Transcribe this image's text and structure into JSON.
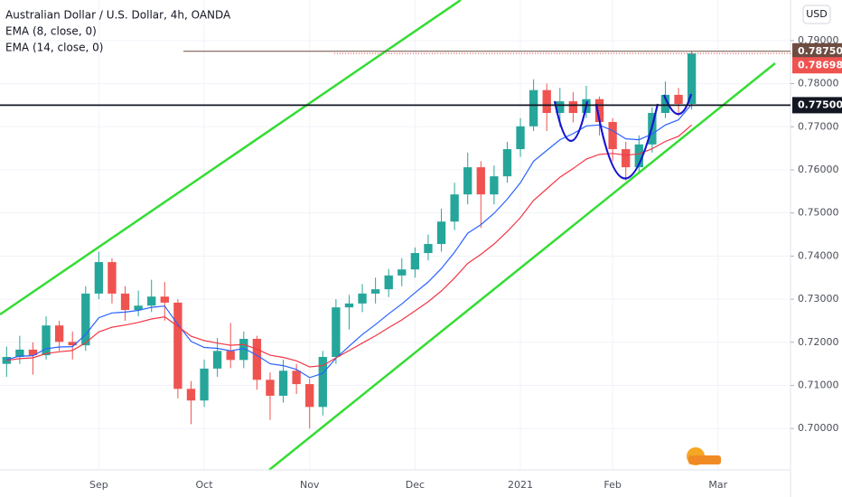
{
  "chart_data": {
    "type": "candlestick",
    "title": "Australian Dollar / U.S. Dollar, 4h, OANDA",
    "currency": "USD",
    "categories": [
      null,
      null,
      null,
      null,
      null,
      null,
      null,
      "Sep",
      null,
      null,
      null,
      null,
      null,
      null,
      null,
      "Oct",
      null,
      null,
      null,
      null,
      null,
      null,
      null,
      "Nov",
      null,
      null,
      null,
      null,
      null,
      null,
      null,
      "Dec",
      null,
      null,
      null,
      null,
      null,
      null,
      null,
      "2021",
      null,
      null,
      null,
      null,
      null,
      null,
      "Feb",
      null,
      null,
      null,
      null,
      null,
      null,
      null,
      "Mar",
      null,
      null,
      null,
      null,
      null
    ],
    "open": [
      0.715,
      0.7166,
      0.7183,
      0.717,
      0.7239,
      0.7201,
      0.7193,
      0.7313,
      0.7386,
      0.7313,
      0.7275,
      0.7285,
      0.7306,
      0.7292,
      0.7092,
      0.7065,
      0.7139,
      0.718,
      0.7159,
      0.7208,
      0.7113,
      0.7076,
      0.7134,
      0.7103,
      0.705,
      0.7166,
      0.7281,
      0.729,
      0.7313,
      0.7323,
      0.7355,
      0.7369,
      0.7407,
      0.7428,
      0.748,
      0.7543,
      0.7606,
      0.7543,
      0.7585,
      0.7648,
      0.7701,
      0.7785,
      0.7732,
      0.7759,
      0.7732,
      0.7764,
      0.7711,
      0.7648,
      0.7606,
      0.7659,
      0.7732,
      0.7774,
      0.7753,
      null,
      null,
      null,
      null,
      null,
      null,
      null
    ],
    "high": [
      0.719,
      0.7215,
      0.72,
      0.726,
      0.725,
      0.7225,
      0.733,
      0.741,
      0.7395,
      0.733,
      0.732,
      0.7345,
      0.734,
      0.73,
      0.711,
      0.716,
      0.721,
      0.7245,
      0.7225,
      0.7215,
      0.713,
      0.716,
      0.715,
      0.7115,
      0.718,
      0.73,
      0.731,
      0.7335,
      0.735,
      0.737,
      0.7395,
      0.742,
      0.745,
      0.751,
      0.757,
      0.764,
      0.762,
      0.761,
      0.7665,
      0.772,
      0.781,
      0.78,
      0.779,
      0.778,
      0.7795,
      0.777,
      0.772,
      0.7665,
      0.768,
      0.7745,
      0.7805,
      0.779,
      0.7875,
      null,
      null,
      null,
      null,
      null,
      null,
      null
    ],
    "low": [
      0.712,
      0.715,
      0.7125,
      0.716,
      0.718,
      0.716,
      0.718,
      0.73,
      0.729,
      0.725,
      0.726,
      0.727,
      0.725,
      0.707,
      0.701,
      0.705,
      0.712,
      0.714,
      0.714,
      0.709,
      0.702,
      0.706,
      0.708,
      0.7,
      0.703,
      0.715,
      0.723,
      0.727,
      0.729,
      0.7305,
      0.733,
      0.735,
      0.739,
      0.741,
      0.746,
      0.752,
      0.7465,
      0.752,
      0.757,
      0.763,
      0.769,
      0.769,
      0.77,
      0.771,
      0.772,
      0.768,
      0.762,
      0.7575,
      0.759,
      0.764,
      0.772,
      0.7725,
      0.774,
      null,
      null,
      null,
      null,
      null,
      null,
      null
    ],
    "close": [
      0.7166,
      0.7183,
      0.717,
      0.7239,
      0.7201,
      0.7193,
      0.7313,
      0.7386,
      0.7313,
      0.7275,
      0.7285,
      0.7306,
      0.7292,
      0.7092,
      0.7065,
      0.7139,
      0.718,
      0.7159,
      0.7208,
      0.7113,
      0.7076,
      0.7134,
      0.7103,
      0.705,
      0.7166,
      0.7281,
      0.729,
      0.7313,
      0.7323,
      0.7355,
      0.7369,
      0.7407,
      0.7428,
      0.748,
      0.7543,
      0.7606,
      0.7543,
      0.7585,
      0.7648,
      0.7701,
      0.7785,
      0.7732,
      0.7759,
      0.7732,
      0.7764,
      0.7711,
      0.7648,
      0.7606,
      0.7659,
      0.7732,
      0.7774,
      0.7753,
      0.787,
      null,
      null,
      null,
      null,
      null,
      null,
      null
    ],
    "up_color": "#26a69a",
    "down_color": "#ef5350",
    "series": [
      {
        "name": "EMA (8, close, 0)",
        "color": "#2962ff",
        "values": [
          0.716,
          0.7168,
          0.7169,
          0.7185,
          0.7189,
          0.719,
          0.7218,
          0.7257,
          0.7268,
          0.727,
          0.7274,
          0.7281,
          0.7284,
          0.7241,
          0.7202,
          0.7188,
          0.7186,
          0.718,
          0.7186,
          0.717,
          0.715,
          0.7146,
          0.7137,
          0.7118,
          0.7128,
          0.7163,
          0.7191,
          0.7218,
          0.7241,
          0.7266,
          0.7289,
          0.7315,
          0.734,
          0.7371,
          0.7409,
          0.7453,
          0.7473,
          0.7499,
          0.7532,
          0.757,
          0.762,
          0.7645,
          0.767,
          0.7684,
          0.7702,
          0.7704,
          0.7691,
          0.7672,
          0.767,
          0.7683,
          0.7704,
          0.7716,
          0.7752,
          null,
          null,
          null,
          null,
          null,
          null,
          null
        ]
      },
      {
        "name": "EMA (14, close, 0)",
        "color": "#f23645",
        "values": [
          0.7158,
          0.7162,
          0.7164,
          0.7174,
          0.7178,
          0.7181,
          0.7199,
          0.7224,
          0.7235,
          0.724,
          0.7246,
          0.7254,
          0.7259,
          0.7237,
          0.7214,
          0.7204,
          0.7198,
          0.7193,
          0.7195,
          0.7184,
          0.717,
          0.7165,
          0.7157,
          0.7143,
          0.7146,
          0.7164,
          0.7181,
          0.7198,
          0.7215,
          0.7234,
          0.7252,
          0.7273,
          0.7294,
          0.7319,
          0.7349,
          0.7383,
          0.7404,
          0.7428,
          0.7457,
          0.7489,
          0.7529,
          0.7556,
          0.7583,
          0.7603,
          0.7625,
          0.7636,
          0.7638,
          0.7634,
          0.7637,
          0.7649,
          0.7666,
          0.7678,
          0.7704,
          null,
          null,
          null,
          null,
          null,
          null,
          null
        ]
      }
    ],
    "ylim": [
      0.6904,
      0.7994
    ],
    "yticks": [
      {
        "value": 0.7,
        "label": "0.70000"
      },
      {
        "value": 0.71,
        "label": "0.71000"
      },
      {
        "value": 0.72,
        "label": "0.72000"
      },
      {
        "value": 0.73,
        "label": "0.73000"
      },
      {
        "value": 0.74,
        "label": "0.74000"
      },
      {
        "value": 0.75,
        "label": "0.75000"
      },
      {
        "value": 0.76,
        "label": "0.76000"
      },
      {
        "value": 0.77,
        "label": "0.77000"
      },
      {
        "value": 0.78,
        "label": "0.78000"
      },
      {
        "value": 0.79,
        "label": "0.79000"
      }
    ],
    "price_lines": [
      {
        "value": 0.7875,
        "label": "0.78750",
        "color": "#6d4c41"
      },
      {
        "value": 0.775,
        "label": "0.77500",
        "color": "#131722"
      }
    ],
    "last_price": {
      "value": 0.78698,
      "label": "0.78698",
      "color": "#ef5350"
    }
  }
}
